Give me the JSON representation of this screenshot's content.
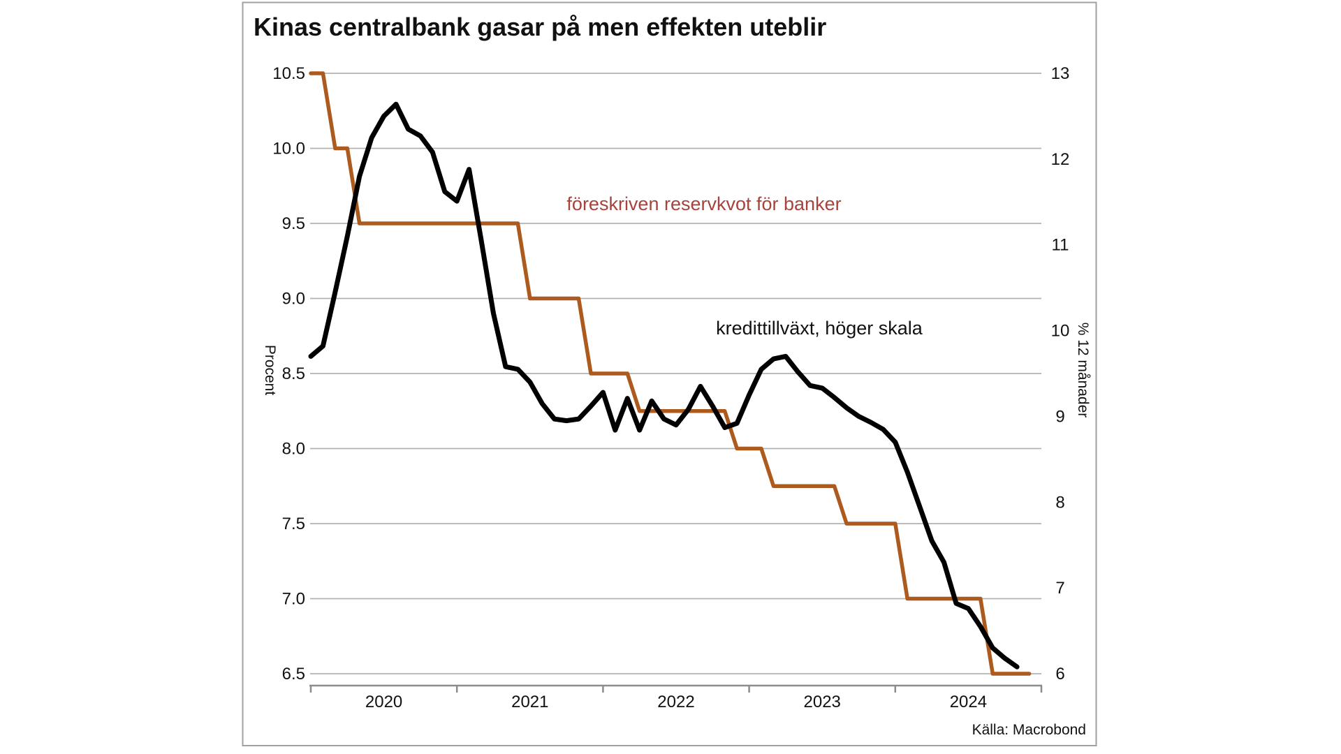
{
  "chart": {
    "title": "Kinas centralbank gasar på men effekten uteblir",
    "source": "Källa: Macrobond",
    "y_left_label": "Procent",
    "y_right_label": "% 12 månader",
    "series_label_reserve": "föreskriven reservkvot för banker",
    "series_label_credit": "kredittillväxt, höger skala",
    "colors": {
      "reserve_line": "#ac5a1e",
      "reserve_label_text": "#a5433c",
      "credit_line": "#000000",
      "gridline": "#b3b3b3",
      "axis_line": "#8c8c8c",
      "frame_border": "#a0a0a0",
      "background": "#ffffff"
    }
  },
  "chart_data": {
    "type": "line",
    "title": "Kinas centralbank gasar på men effekten uteblir",
    "source": "Källa: Macrobond",
    "frequency": "monthly",
    "x_start": "2020-01",
    "x_tick_years": [
      "2020",
      "2021",
      "2022",
      "2023",
      "2024"
    ],
    "grid": "horizontal-only",
    "legend_position": "inline-annotations",
    "y_left": {
      "label": "Procent",
      "min": 6.5,
      "max": 10.5,
      "tick_values": [
        10.5,
        10.0,
        9.5,
        9.0,
        8.5,
        8.0,
        7.5,
        7.0,
        6.5
      ],
      "tick_labels": [
        "10.5",
        "10.0",
        "9.5",
        "9.0",
        "8.5",
        "8.0",
        "7.5",
        "7.0",
        "6.5"
      ]
    },
    "y_right": {
      "label": "% 12 månader",
      "min": 6,
      "max": 13,
      "tick_values": [
        13,
        12,
        11,
        10,
        9,
        8,
        7,
        6
      ],
      "tick_labels": [
        "13",
        "12",
        "11",
        "10",
        "9",
        "8",
        "7",
        "6"
      ]
    },
    "series": [
      {
        "name": "föreskriven reservkvot för banker",
        "axis": "left",
        "color": "#ac5a1e",
        "x_end": "2024-12",
        "values": [
          10.5,
          10.5,
          10.0,
          10.0,
          9.5,
          9.5,
          9.5,
          9.5,
          9.5,
          9.5,
          9.5,
          9.5,
          9.5,
          9.5,
          9.5,
          9.5,
          9.5,
          9.5,
          9.0,
          9.0,
          9.0,
          9.0,
          9.0,
          8.5,
          8.5,
          8.5,
          8.5,
          8.25,
          8.25,
          8.25,
          8.25,
          8.25,
          8.25,
          8.25,
          8.25,
          8.0,
          8.0,
          8.0,
          7.75,
          7.75,
          7.75,
          7.75,
          7.75,
          7.75,
          7.5,
          7.5,
          7.5,
          7.5,
          7.5,
          7.0,
          7.0,
          7.0,
          7.0,
          7.0,
          7.0,
          7.0,
          6.5,
          6.5,
          6.5,
          6.5
        ]
      },
      {
        "name": "kredittillväxt, höger skala",
        "axis": "right",
        "color": "#000000",
        "x_end": "2024-11",
        "values": [
          9.7,
          9.82,
          10.45,
          11.1,
          11.8,
          12.25,
          12.5,
          12.64,
          12.35,
          12.27,
          12.08,
          11.62,
          11.51,
          11.88,
          11.05,
          10.2,
          9.58,
          9.55,
          9.4,
          9.15,
          8.97,
          8.95,
          8.97,
          9.12,
          9.28,
          8.84,
          9.21,
          8.84,
          9.18,
          8.97,
          8.9,
          9.08,
          9.35,
          9.12,
          8.87,
          8.92,
          9.25,
          9.55,
          9.67,
          9.7,
          9.52,
          9.36,
          9.33,
          9.22,
          9.1,
          9.0,
          8.93,
          8.85,
          8.7,
          8.35,
          7.95,
          7.55,
          7.3,
          6.82,
          6.76,
          6.55,
          6.3,
          6.18,
          6.08
        ]
      }
    ]
  }
}
